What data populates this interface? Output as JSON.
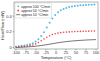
{
  "chart_data": {
    "type": "line",
    "xlabel": "Temperature (°C)",
    "ylabel": "Heat Flow (mW)",
    "xlim": [
      -105,
      105
    ],
    "ylim": [
      -0.02,
      0.58
    ],
    "xticks": [
      -100,
      -75,
      -50,
      -25,
      0,
      25,
      50,
      75,
      100
    ],
    "yticks": [
      0,
      0.2,
      0.4
    ],
    "grid": false,
    "legend": "upper left",
    "series": [
      {
        "name": "approx 100 °C/min",
        "type": "scatter",
        "color": "#55bbee",
        "marker": "circle",
        "line_style": "none",
        "x": [
          -100,
          -93,
          -86,
          -79,
          -72,
          -65,
          -58,
          -51,
          -44,
          -37,
          -30,
          -23,
          -16,
          -9,
          -2,
          5,
          12,
          19,
          26,
          33,
          40,
          47,
          54,
          61,
          68,
          75,
          82,
          89,
          96
        ],
        "values": [
          0.01,
          0.015,
          0.02,
          0.025,
          0.03,
          0.04,
          0.055,
          0.075,
          0.105,
          0.145,
          0.195,
          0.255,
          0.315,
          0.37,
          0.415,
          0.45,
          0.475,
          0.492,
          0.505,
          0.515,
          0.522,
          0.528,
          0.533,
          0.537,
          0.54,
          0.542,
          0.544,
          0.546,
          0.548
        ]
      },
      {
        "name": "approx 50 °C/min",
        "type": "scatter",
        "color": "#ee4444",
        "marker": "circle",
        "line_style": "none",
        "x": [
          -100,
          -93,
          -86,
          -79,
          -72,
          -65,
          -58,
          -51,
          -44,
          -37,
          -30,
          -23,
          -16,
          -9,
          -2,
          5,
          12,
          19,
          26,
          33,
          40,
          47,
          54,
          61,
          68,
          75,
          82,
          89,
          96
        ],
        "values": [
          0.005,
          0.007,
          0.01,
          0.013,
          0.017,
          0.023,
          0.032,
          0.045,
          0.063,
          0.085,
          0.108,
          0.13,
          0.15,
          0.165,
          0.175,
          0.183,
          0.189,
          0.193,
          0.196,
          0.198,
          0.2,
          0.202,
          0.203,
          0.205,
          0.206,
          0.207,
          0.208,
          0.209,
          0.21
        ]
      },
      {
        "name": "approx 10 °C/min",
        "type": "line",
        "color": "#555555",
        "marker": "none",
        "line_style": "solid",
        "x": [
          -100,
          -90,
          -80,
          -70,
          -60,
          -50,
          -40,
          -30,
          -20,
          -10,
          0,
          10,
          20,
          30,
          40,
          50,
          60,
          70,
          80,
          90,
          100
        ],
        "values": [
          0.0,
          0.002,
          0.004,
          0.007,
          0.011,
          0.016,
          0.022,
          0.03,
          0.038,
          0.047,
          0.056,
          0.064,
          0.071,
          0.077,
          0.082,
          0.086,
          0.09,
          0.093,
          0.096,
          0.098,
          0.1
        ]
      }
    ]
  }
}
